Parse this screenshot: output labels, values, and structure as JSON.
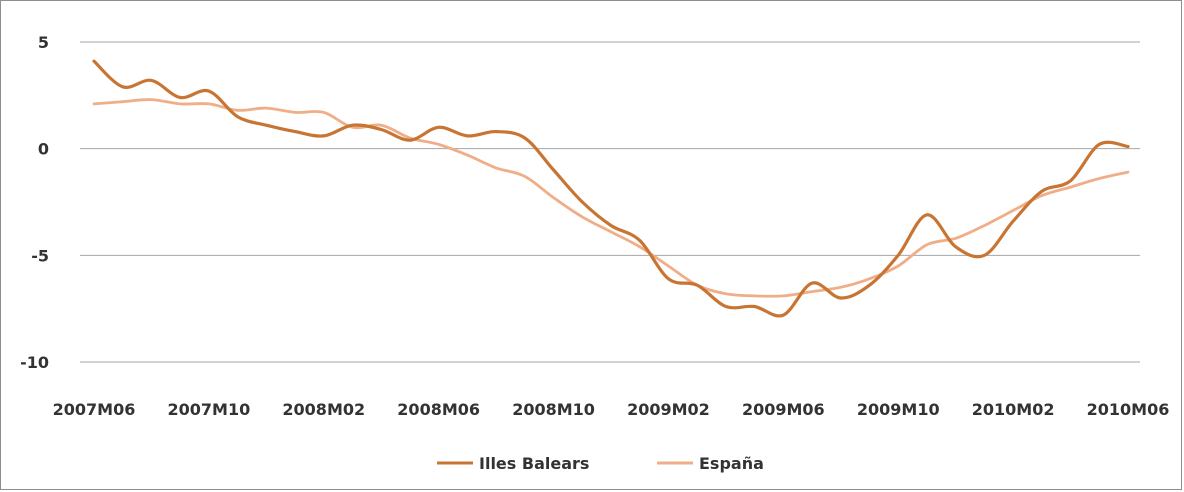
{
  "chart_data": {
    "type": "line",
    "title": "",
    "xlabel": "",
    "ylabel": "",
    "ylim": [
      -10,
      5
    ],
    "yticks": [
      5,
      0,
      -5,
      -10
    ],
    "grid": "horizontal",
    "legend_position": "bottom",
    "x_tick_labels": [
      "2007M06",
      "2007M10",
      "2008M02",
      "2008M06",
      "2008M10",
      "2009M02",
      "2009M06",
      "2009M10",
      "2010M02",
      "2010M06"
    ],
    "x": [
      "2007M06",
      "2007M07",
      "2007M08",
      "2007M09",
      "2007M10",
      "2007M11",
      "2007M12",
      "2008M01",
      "2008M02",
      "2008M03",
      "2008M04",
      "2008M05",
      "2008M06",
      "2008M07",
      "2008M08",
      "2008M09",
      "2008M10",
      "2008M11",
      "2008M12",
      "2009M01",
      "2009M02",
      "2009M03",
      "2009M04",
      "2009M05",
      "2009M06",
      "2009M07",
      "2009M08",
      "2009M09",
      "2009M10",
      "2009M11",
      "2009M12",
      "2010M01",
      "2010M02",
      "2010M03",
      "2010M04",
      "2010M05",
      "2010M06"
    ],
    "series": [
      {
        "name": "Illes Balears",
        "color": "#c87533",
        "values": [
          4.1,
          2.9,
          3.2,
          2.4,
          2.7,
          1.5,
          1.1,
          0.8,
          0.6,
          1.1,
          0.9,
          0.4,
          1.0,
          0.6,
          0.8,
          0.5,
          -1.0,
          -2.5,
          -3.6,
          -4.3,
          -6.1,
          -6.4,
          -7.4,
          -7.4,
          -7.8,
          -6.3,
          -7.0,
          -6.4,
          -5.0,
          -3.1,
          -4.6,
          -5.0,
          -3.4,
          -2.0,
          -1.5,
          0.2,
          0.1
        ]
      },
      {
        "name": "España",
        "color": "#f0ae88",
        "values": [
          2.1,
          2.2,
          2.3,
          2.1,
          2.1,
          1.8,
          1.9,
          1.7,
          1.7,
          1.0,
          1.1,
          0.5,
          0.2,
          -0.3,
          -0.9,
          -1.3,
          -2.3,
          -3.2,
          -3.9,
          -4.6,
          -5.5,
          -6.4,
          -6.8,
          -6.9,
          -6.9,
          -6.7,
          -6.5,
          -6.1,
          -5.5,
          -4.5,
          -4.2,
          -3.6,
          -2.9,
          -2.2,
          -1.8,
          -1.4,
          -1.1
        ]
      }
    ]
  }
}
